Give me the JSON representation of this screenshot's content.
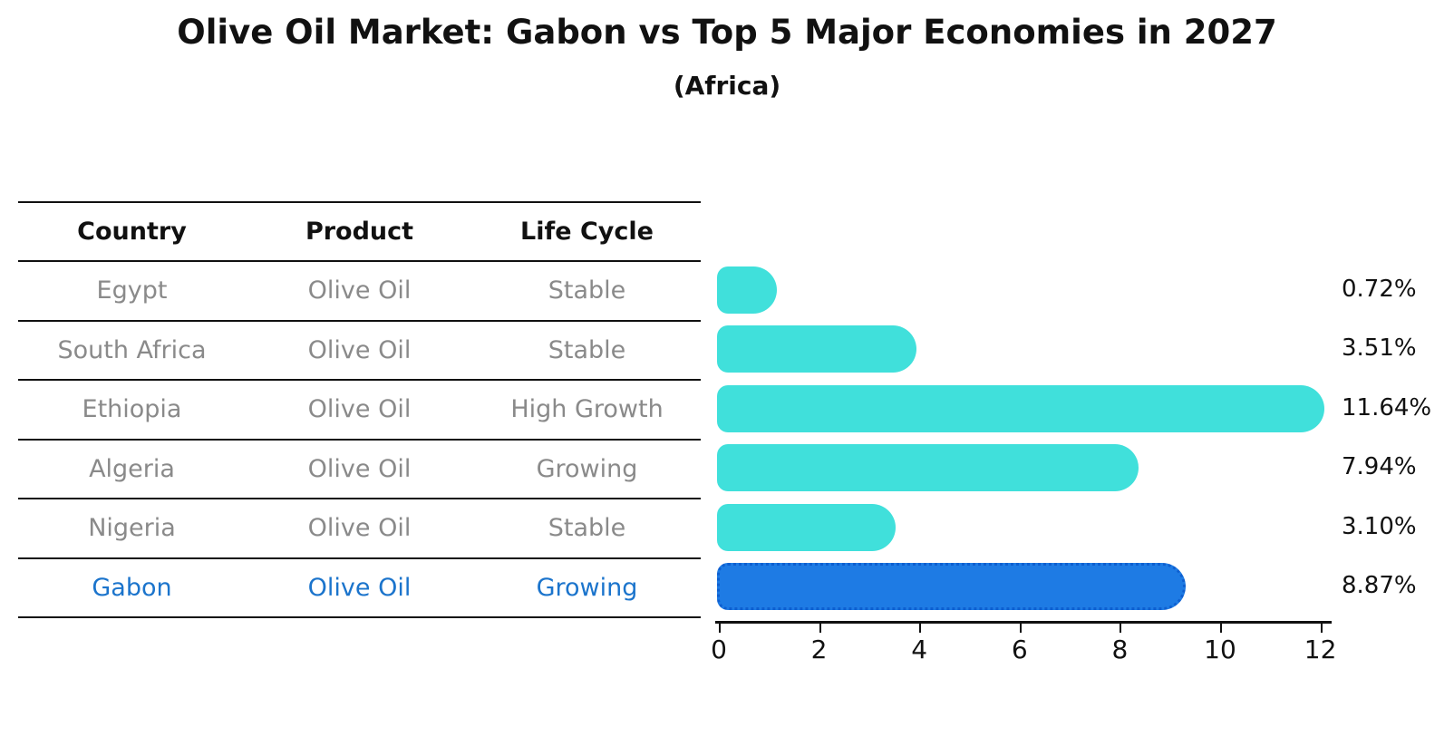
{
  "title": "Olive Oil Market: Gabon vs Top 5 Major Economies in 2027",
  "subtitle": "(Africa)",
  "table": {
    "headers": [
      "Country",
      "Product",
      "Life Cycle"
    ]
  },
  "chart_data": {
    "type": "bar",
    "orientation": "horizontal",
    "xlim": [
      0,
      12
    ],
    "xticks": [
      0,
      2,
      4,
      6,
      8,
      10,
      12
    ],
    "grid": false,
    "legend": "none",
    "categories": [
      "Egypt",
      "South Africa",
      "Ethiopia",
      "Algeria",
      "Nigeria",
      "Gabon"
    ],
    "values": [
      0.72,
      3.51,
      11.64,
      7.94,
      3.1,
      8.87
    ],
    "rows": [
      {
        "country": "Egypt",
        "product": "Olive Oil",
        "life_cycle": "Stable",
        "value": 0.72,
        "label": "0.72%",
        "highlight": false
      },
      {
        "country": "South Africa",
        "product": "Olive Oil",
        "life_cycle": "Stable",
        "value": 3.51,
        "label": "3.51%",
        "highlight": false
      },
      {
        "country": "Ethiopia",
        "product": "Olive Oil",
        "life_cycle": "High Growth",
        "value": 11.64,
        "label": "11.64%",
        "highlight": false
      },
      {
        "country": "Algeria",
        "product": "Olive Oil",
        "life_cycle": "Growing",
        "value": 7.94,
        "label": "7.94%",
        "highlight": false
      },
      {
        "country": "Nigeria",
        "product": "Olive Oil",
        "life_cycle": "Stable",
        "value": 3.1,
        "label": "3.10%",
        "highlight": false
      },
      {
        "country": "Gabon",
        "product": "Olive Oil",
        "life_cycle": "Growing",
        "value": 8.87,
        "label": "8.87%",
        "highlight": true
      }
    ],
    "colors": {
      "bar": "#40e0db",
      "highlight_bar": "#1e7be4",
      "highlight_border": "#0e5fd0",
      "highlight_text": "#1b74cc",
      "row_text": "#8a8a8a",
      "axis_text": "#111111"
    }
  }
}
